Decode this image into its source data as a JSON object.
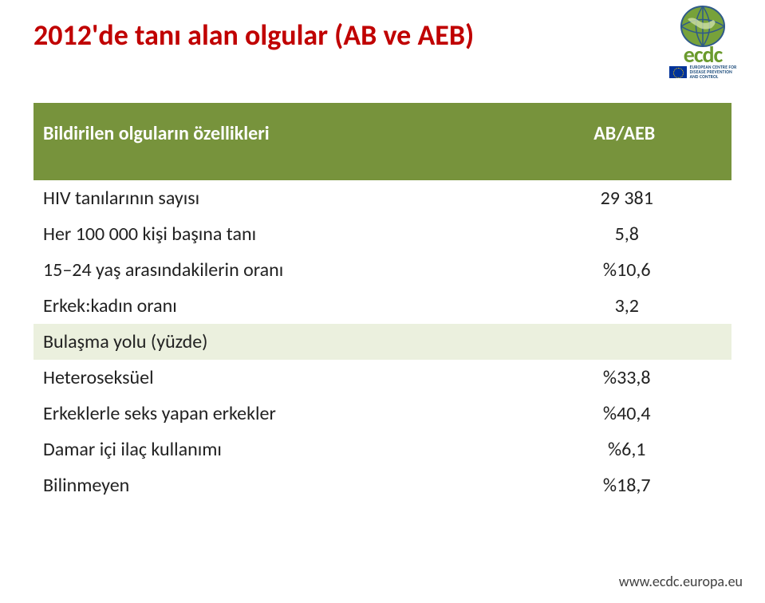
{
  "title": "2012'de tanı alan olgular (AB ve AEB)",
  "logo": {
    "word": "ecdc",
    "subtext": "EUROPEAN CENTRE FOR\nDISEASE PREVENTION\nAND CONTROL",
    "globe_fill": "#77a23a",
    "globe_stroke": "#2f5a8a"
  },
  "table": {
    "header_label": "Bildirilen olguların özellikleri",
    "header_value": "AB/AEB",
    "header_bg": "#77933c",
    "header_text_color": "#ffffff",
    "section_bg": "#ebf0de",
    "rows": [
      {
        "label": "HIV tanılarının sayısı",
        "value": "29 381",
        "section": false
      },
      {
        "label": "Her 100 000 kişi başına tanı",
        "value": "5,8",
        "section": false
      },
      {
        "label": "15–24 yaş arasındakilerin oranı",
        "value": "%10,6",
        "section": false
      },
      {
        "label": "Erkek:kadın oranı",
        "value": "3,2",
        "section": false
      },
      {
        "label": "Bulaşma yolu (yüzde)",
        "value": "",
        "section": true
      },
      {
        "label": "Heteroseksüel",
        "value": "%33,8",
        "section": false
      },
      {
        "label": "Erkeklerle seks yapan erkekler",
        "value": "%40,4",
        "section": false
      },
      {
        "label": "Damar içi ilaç kullanımı",
        "value": "%6,1",
        "section": false
      },
      {
        "label": "Bilinmeyen",
        "value": "%18,7",
        "section": false
      }
    ]
  },
  "footer": "www.ecdc.europa.eu",
  "colors": {
    "title": "#c00000",
    "body_text": "#222222",
    "footer_text": "#404040",
    "background": "#ffffff"
  },
  "typography": {
    "title_fontsize_pt": 27,
    "table_fontsize_pt": 18,
    "footer_fontsize_pt": 13
  }
}
